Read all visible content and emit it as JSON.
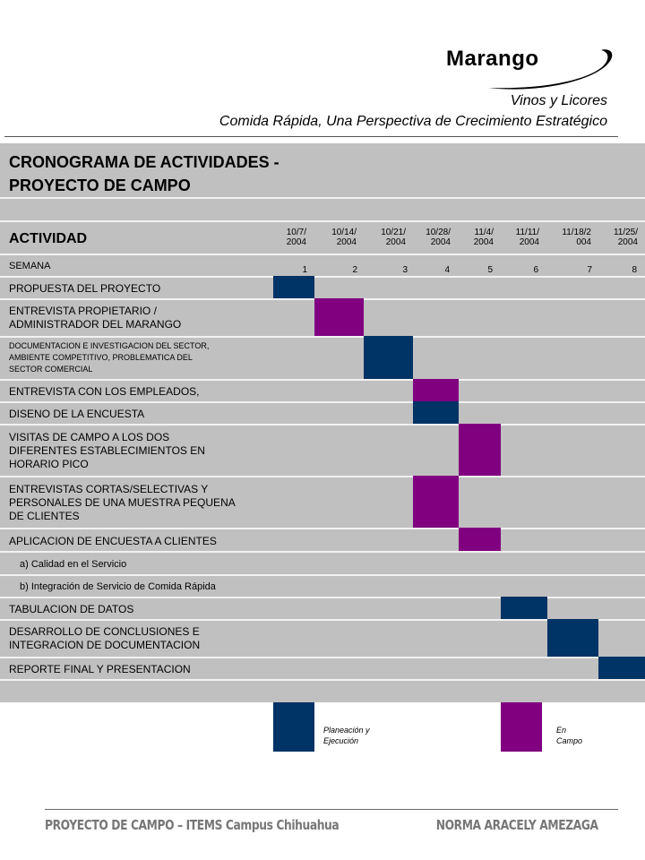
{
  "header": {
    "logo_text": "Marango",
    "subtitle_1": "Vinos y Licores",
    "subtitle_2": "Comida Rápida, Una Perspectiva de Crecimiento Estratégico"
  },
  "table": {
    "title_line_1": "CRONOGRAMA  DE ACTIVIDADES -",
    "title_line_2": "PROYECTO DE CAMPO",
    "actividad_label": "ACTIVIDAD",
    "semana_label": "SEMANA",
    "dates": [
      {
        "l1": "10/7/",
        "l2": "2004"
      },
      {
        "l1": "10/14/",
        "l2": "2004"
      },
      {
        "l1": "10/21/",
        "l2": "2004"
      },
      {
        "l1": "10/28/",
        "l2": "2004"
      },
      {
        "l1": "11/4/",
        "l2": "2004"
      },
      {
        "l1": "11/11/",
        "l2": "2004"
      },
      {
        "l1": "11/18/2",
        "l2": "004"
      },
      {
        "l1": "11/25/",
        "l2": "2004"
      }
    ],
    "weeks": [
      "1",
      "2",
      "3",
      "4",
      "5",
      "6",
      "7",
      "8"
    ],
    "activities": [
      {
        "label": "PROPUESTA  DEL PROYECTO",
        "type": "planeacion"
      },
      {
        "l1": "ENTREVISTA  PROPIETARIO  /",
        "l2": "ADMINISTRADOR  DEL MARANGO",
        "type": "campo"
      },
      {
        "l1": "DOCUMENTACION E INVESTIGACION DEL SECTOR,",
        "l2": "AMBIENTE COMPETITIVO, PROBLEMATICA DEL",
        "l3": "SECTOR COMERCIAL",
        "type": "planeacion"
      },
      {
        "label": "ENTREVISTA  CON LOS EMPLEADOS,",
        "type": "campo"
      },
      {
        "label": "DISENO DE LA ENCUESTA",
        "type": "planeacion"
      },
      {
        "l1": "VISITAS DE CAMPO A LOS DOS",
        "l2": "DIFERENTES  ESTABLECIMIENTOS  EN",
        "l3": "HORARIO  PICO",
        "type": "campo"
      },
      {
        "l1": "ENTREVISTAS  CORTAS/SELECTIVAS  Y",
        "l2": "PERSONALES DE UNA MUESTRA PEQUENA",
        "l3": "DE CLIENTES",
        "type": "campo"
      },
      {
        "label": "APLICACION  DE ENCUESTA  A CLIENTES",
        "type": "campo"
      },
      {
        "label": "a)  Calidad en el Servicio"
      },
      {
        "label": "b)  Integración de Servicio de Comida Rápida"
      },
      {
        "label": "TABULACION  DE DATOS",
        "type": "planeacion"
      },
      {
        "l1": "DESARROLLO DE CONCLUSIONES  E",
        "l2": "INTEGRACION  DE DOCUMENTACION",
        "type": "planeacion"
      },
      {
        "label": "REPORTE FINAL Y PRESENTACION",
        "type": "planeacion"
      }
    ]
  },
  "legend": {
    "planeacion_l1": "Planeación y",
    "planeacion_l2": "Ejecución",
    "campo_l1": "En",
    "campo_l2": "Campo"
  },
  "colors": {
    "planeacion": "#003366",
    "campo": "#800080",
    "table_bg": "#c0c0c0"
  },
  "footer": {
    "left": "PROYECTO DE CAMPO – ITEMS Campus Chihuahua",
    "right": "NORMA ARACELY AMEZAGA"
  }
}
